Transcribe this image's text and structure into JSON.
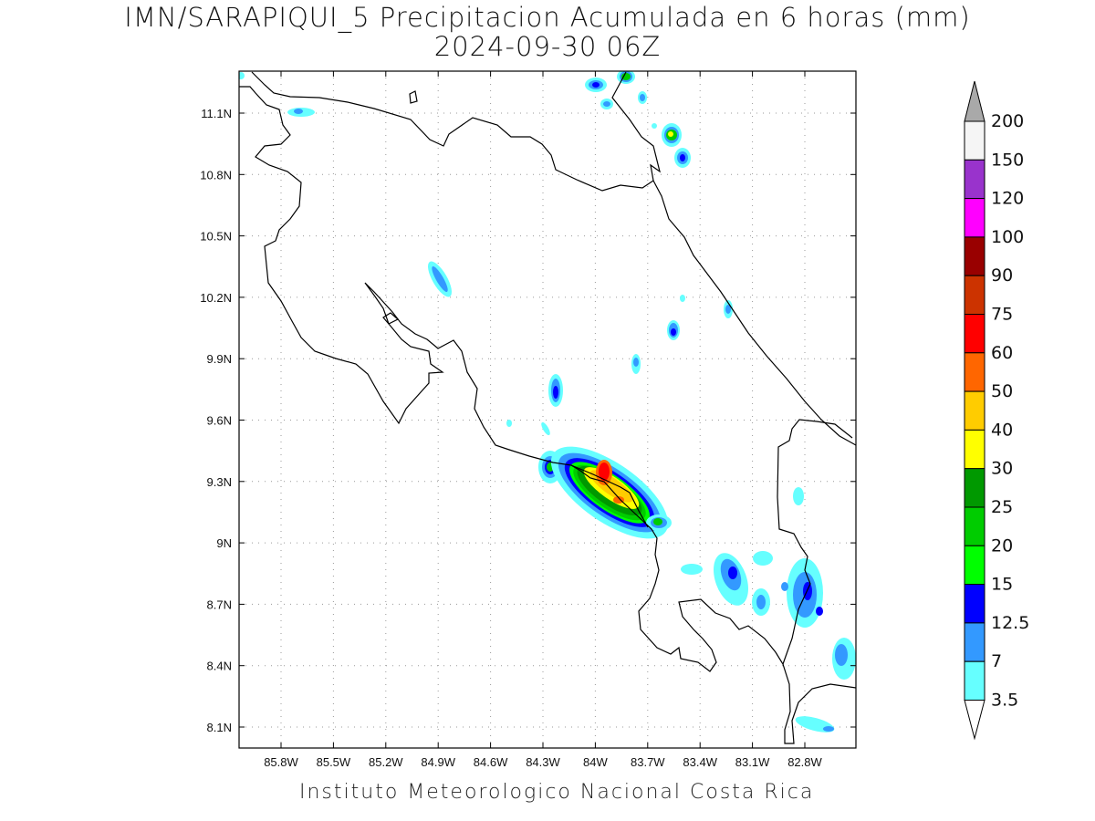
{
  "title": {
    "line1": "IMN/SARAPIQUI_5 Precipitacion Acumulada en 6 horas (mm)",
    "line2": "2024-09-30 06Z"
  },
  "footer": "Instituto Meteorologico Nacional Costa Rica",
  "map": {
    "lat_ticks": [
      "11.1N",
      "10.8N",
      "10.5N",
      "10.2N",
      "9.9N",
      "9.6N",
      "9.3N",
      "9N",
      "8.7N",
      "8.4N",
      "8.1N"
    ],
    "lon_ticks": [
      "85.8W",
      "85.5W",
      "85.2W",
      "84.9W",
      "84.6W",
      "84.3W",
      "84W",
      "83.7W",
      "83.4W",
      "83.1W",
      "82.8W"
    ],
    "grid": true
  },
  "legend": {
    "labels": [
      "200",
      "150",
      "120",
      "100",
      "90",
      "75",
      "60",
      "50",
      "40",
      "30",
      "25",
      "20",
      "15",
      "12.5",
      "7",
      "3.5"
    ],
    "colors": [
      "#f5f5f5",
      "#9933cc",
      "#ff00ff",
      "#990000",
      "#cc3300",
      "#ff0000",
      "#ff6600",
      "#ffcc00",
      "#ffff00",
      "#009900",
      "#00cc00",
      "#00ff00",
      "#0000ff",
      "#3399ff",
      "#66ffff"
    ],
    "top_arrow_color": "#a9a9a9",
    "bottom_arrow_color": "#ffffff"
  }
}
